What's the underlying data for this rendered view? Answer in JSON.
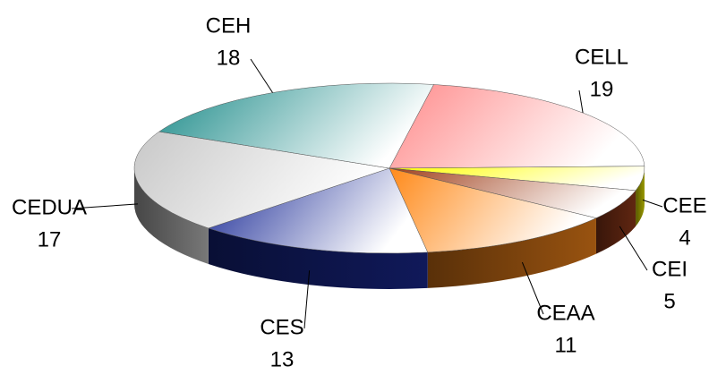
{
  "chart_data": {
    "type": "pie",
    "categories": [
      "CELL",
      "CEE",
      "CEI",
      "CEAA",
      "CES",
      "CEDUA",
      "CEH"
    ],
    "values": [
      19,
      4,
      5,
      11,
      13,
      17,
      18
    ],
    "colors": [
      "#ff8a8a",
      "#ffff00",
      "#a0401c",
      "#ff8a1a",
      "#1a2a96",
      "#c8c8c8",
      "#1e8c8a"
    ]
  }
}
